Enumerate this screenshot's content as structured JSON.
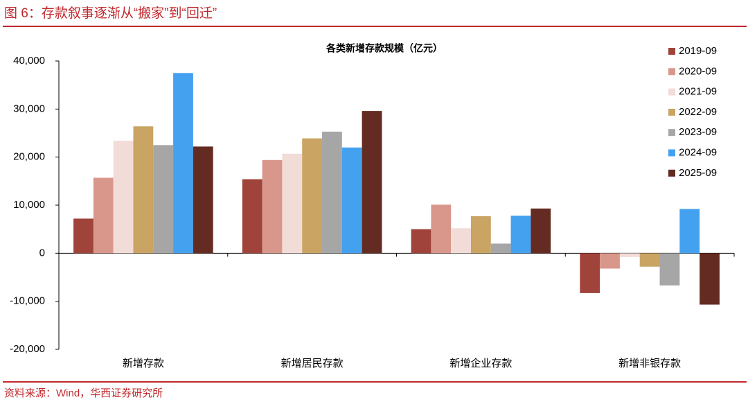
{
  "figure_title": "图 6：存款叙事逐渐从“搬家”到“回迁”",
  "source": "资料来源：Wind，华西证券研究所",
  "chart_data": {
    "type": "bar",
    "title": "各类新增存款规模（亿元）",
    "categories": [
      "新增存款",
      "新增居民存款",
      "新增企业存款",
      "新增非银存款"
    ],
    "series": [
      {
        "name": "2019-09",
        "color": "#a0433a",
        "values": [
          7200,
          15400,
          5000,
          -8300
        ]
      },
      {
        "name": "2020-09",
        "color": "#d9978c",
        "values": [
          15700,
          19400,
          10100,
          -3200
        ]
      },
      {
        "name": "2021-09",
        "color": "#f2dcd8",
        "values": [
          23400,
          20700,
          5200,
          -800
        ]
      },
      {
        "name": "2022-09",
        "color": "#c9a463",
        "values": [
          26400,
          23900,
          7700,
          -2800
        ]
      },
      {
        "name": "2023-09",
        "color": "#a6a6a6",
        "values": [
          22500,
          25300,
          2000,
          -6700
        ]
      },
      {
        "name": "2024-09",
        "color": "#44a1f0",
        "values": [
          37500,
          22000,
          7800,
          9200
        ]
      },
      {
        "name": "2025-09",
        "color": "#632b22",
        "values": [
          22200,
          29600,
          9300,
          -10700
        ]
      }
    ],
    "ylim": [
      -20000,
      40000
    ],
    "yticks": [
      {
        "value": -20000,
        "label": "-20,000"
      },
      {
        "value": -10000,
        "label": "-10,000"
      },
      0,
      {
        "value": 10000,
        "label": "10,000"
      },
      {
        "value": 20000,
        "label": "20,000"
      },
      {
        "value": 30000,
        "label": "30,000"
      },
      {
        "value": 40000,
        "label": "40,000"
      }
    ],
    "grid": false,
    "legend": "right"
  }
}
